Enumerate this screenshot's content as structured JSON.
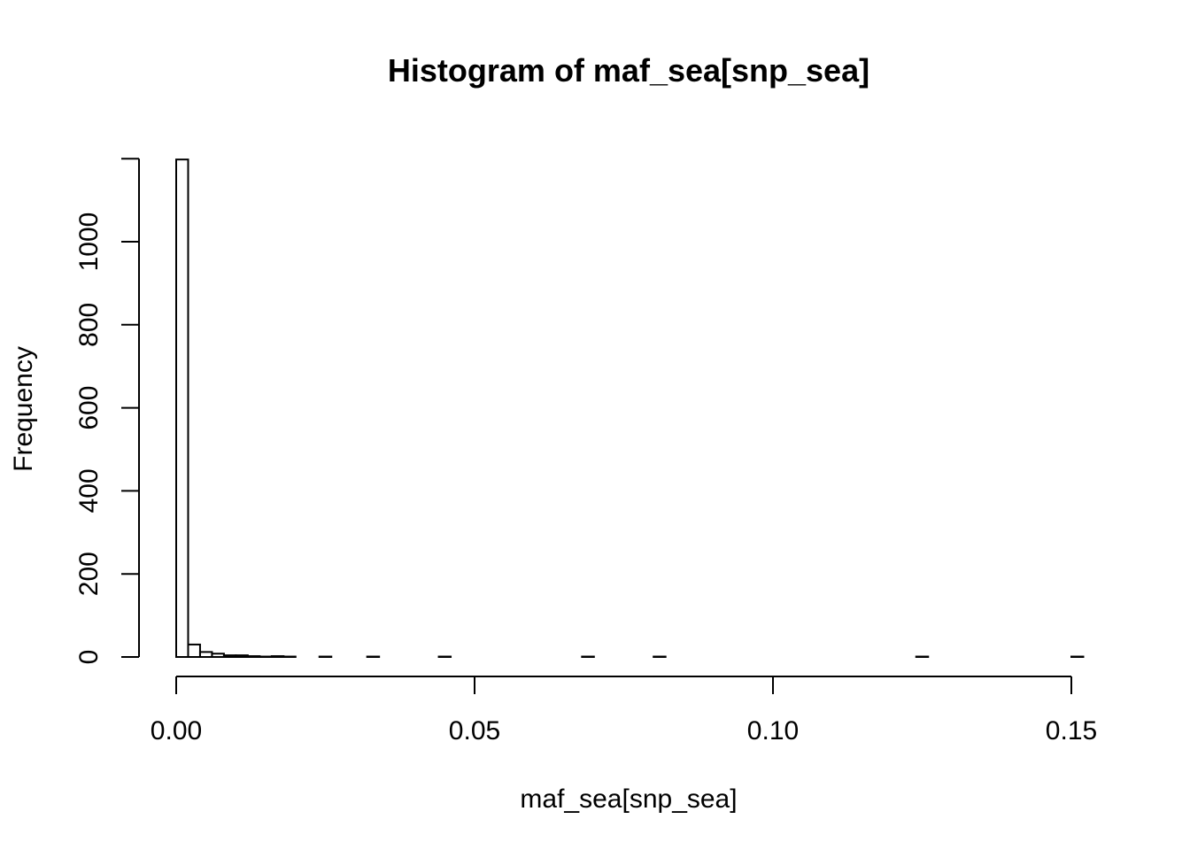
{
  "chart_data": {
    "type": "bar",
    "title": "Histogram of maf_sea[snp_sea]",
    "xlabel": "maf_sea[snp_sea]",
    "ylabel": "Frequency",
    "xlim": [
      0.0,
      0.152
    ],
    "ylim": [
      0,
      1200
    ],
    "x_ticks": [
      0.0,
      0.05,
      0.1,
      0.15
    ],
    "x_tick_labels": [
      "0.00",
      "0.05",
      "0.10",
      "0.15"
    ],
    "y_ticks": [
      0,
      200,
      400,
      600,
      800,
      1000
    ],
    "y_tick_labels": [
      "0",
      "200",
      "400",
      "600",
      "800",
      "1000"
    ],
    "grid": false,
    "bin_width": 0.002,
    "bins": [
      {
        "x0": 0.0,
        "x1": 0.002,
        "count": 1198
      },
      {
        "x0": 0.002,
        "x1": 0.004,
        "count": 30
      },
      {
        "x0": 0.004,
        "x1": 0.006,
        "count": 12
      },
      {
        "x0": 0.006,
        "x1": 0.008,
        "count": 8
      },
      {
        "x0": 0.008,
        "x1": 0.01,
        "count": 4
      },
      {
        "x0": 0.01,
        "x1": 0.012,
        "count": 4
      },
      {
        "x0": 0.012,
        "x1": 0.014,
        "count": 2
      },
      {
        "x0": 0.014,
        "x1": 0.016,
        "count": 1
      },
      {
        "x0": 0.016,
        "x1": 0.018,
        "count": 2
      },
      {
        "x0": 0.018,
        "x1": 0.02,
        "count": 1
      },
      {
        "x0": 0.024,
        "x1": 0.026,
        "count": 1
      },
      {
        "x0": 0.032,
        "x1": 0.034,
        "count": 1
      },
      {
        "x0": 0.044,
        "x1": 0.046,
        "count": 1
      },
      {
        "x0": 0.068,
        "x1": 0.07,
        "count": 1
      },
      {
        "x0": 0.08,
        "x1": 0.082,
        "count": 1
      },
      {
        "x0": 0.124,
        "x1": 0.126,
        "count": 1
      },
      {
        "x0": 0.15,
        "x1": 0.152,
        "count": 1
      }
    ]
  }
}
